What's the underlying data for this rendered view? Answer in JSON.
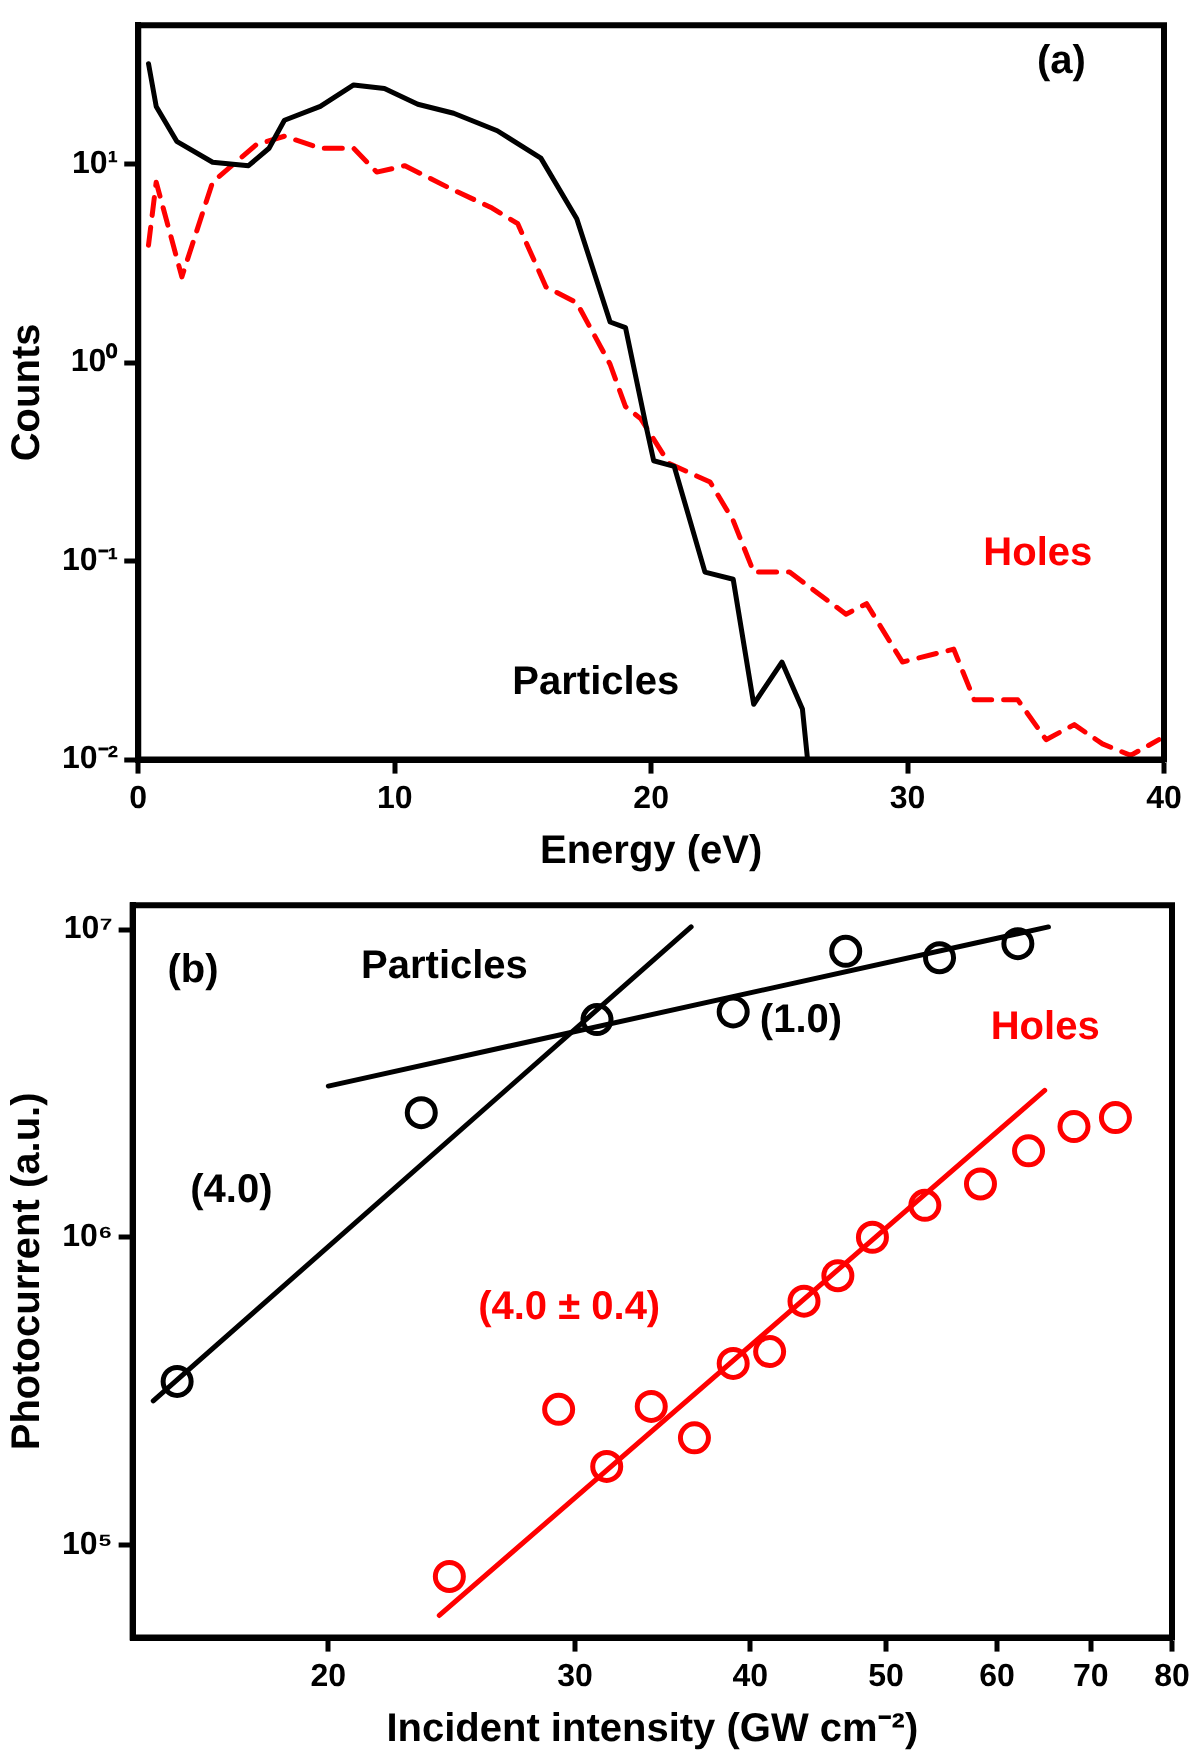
{
  "chart_data": [
    {
      "type": "line",
      "xlabel": "Energy (eV)",
      "ylabel": "Counts",
      "annotations": [
        "(a)"
      ],
      "log": "y",
      "xlim": [
        0,
        40
      ],
      "xticks": [
        0,
        10,
        20,
        30,
        40
      ],
      "ylim": [
        0.01,
        50
      ],
      "yticks": [
        {
          "value": 0.01,
          "label": "10⁻²"
        },
        {
          "value": 0.1,
          "label": "10⁻¹"
        },
        {
          "value": 1,
          "label": "10⁰"
        },
        {
          "value": 10,
          "label": "10¹"
        }
      ],
      "grid": false,
      "legend": false,
      "marker": "none",
      "series": [
        {
          "name": "Particles",
          "color": "#000000",
          "line_style": "solid",
          "x": [
            0.4,
            0.7,
            1.5,
            2.9,
            4.3,
            5.1,
            5.7,
            7.1,
            8.4,
            9.6,
            10.9,
            12.3,
            14.0,
            15.7,
            17.1,
            18.4,
            19.0,
            19.8,
            20.1,
            20.9,
            22.1,
            23.2,
            24.0,
            25.1,
            25.9,
            26.1
          ],
          "values": [
            32,
            19.5,
            13,
            10.2,
            9.8,
            12,
            16.6,
            19.5,
            25,
            24,
            20,
            18,
            14.7,
            10.7,
            5.3,
            1.6,
            1.5,
            0.48,
            0.32,
            0.3,
            0.088,
            0.081,
            0.019,
            0.031,
            0.018,
            0.01
          ]
        },
        {
          "name": "Holes",
          "color": "#ff0000",
          "line_style": "dashed",
          "x": [
            0.4,
            0.7,
            1.7,
            2.1,
            2.9,
            4.6,
            5.7,
            7.1,
            8.4,
            9.3,
            10.4,
            12.1,
            13.8,
            14.8,
            15.9,
            17.1,
            18.4,
            19.0,
            19.6,
            20.7,
            22.3,
            23.2,
            24.0,
            25.4,
            27.6,
            28.4,
            29.8,
            31.8,
            32.6,
            34.3,
            35.4,
            36.5,
            37.6,
            38.7,
            39.8
          ],
          "values": [
            3.9,
            8.1,
            2.7,
            3.9,
            8.1,
            12.5,
            13.8,
            12,
            12,
            9.1,
            9.8,
            7.6,
            6,
            5,
            2.4,
            2.0,
            0.98,
            0.6,
            0.52,
            0.31,
            0.25,
            0.16,
            0.088,
            0.088,
            0.054,
            0.061,
            0.031,
            0.036,
            0.02,
            0.02,
            0.0126,
            0.015,
            0.012,
            0.0105,
            0.0126
          ]
        }
      ]
    },
    {
      "type": "scatter",
      "xlabel": "Incident intensity (GW cm⁻²)",
      "ylabel": "Photocurrent (a.u.)",
      "annotations": [
        "(b)"
      ],
      "log": "xy",
      "xlim": [
        14.5,
        80
      ],
      "xticks": [
        20,
        30,
        40,
        50,
        60,
        70,
        80
      ],
      "ylim": [
        50000,
        12000000
      ],
      "yticks": [
        {
          "value": 100000,
          "label": "10⁵"
        },
        {
          "value": 1000000,
          "label": "10⁶"
        },
        {
          "value": 10000000,
          "label": "10⁷"
        }
      ],
      "grid": false,
      "legend": false,
      "series": [
        {
          "name": "Particles",
          "color": "#000000",
          "marker": "circle",
          "x": [
            15.6,
            23.3,
            31.1,
            38.9,
            46.8,
            54.6,
            62.1
          ],
          "values": [
            340000,
            2540000,
            5100000,
            5400000,
            8500000,
            8100000,
            9000000
          ]
        },
        {
          "name": "Holes",
          "color": "#ff0000",
          "marker": "circle",
          "x": [
            24.4,
            29.2,
            31.6,
            34.0,
            36.5,
            38.9,
            41.3,
            43.7,
            46.2,
            48.9,
            53.3,
            58.4,
            63.2,
            68.1,
            72.9
          ],
          "values": [
            79000,
            276000,
            180000,
            282000,
            223000,
            389000,
            425000,
            620000,
            750000,
            1000000,
            1270000,
            1490000,
            1910000,
            2290000,
            2450000
          ]
        },
        {
          "name": "(4.0)",
          "type": "line",
          "marker": "none",
          "color": "#000000",
          "x": [
            15.0,
            36.3
          ],
          "values": [
            294000,
            10200000
          ]
        },
        {
          "name": "(1.0)",
          "type": "line",
          "marker": "none",
          "color": "#000000",
          "x": [
            20,
            65.3
          ],
          "values": [
            3100000,
            10200000
          ]
        },
        {
          "name": "(4.0 ± 0.4)",
          "type": "line",
          "marker": "none",
          "color": "#ff0000",
          "x": [
            24.0,
            64.9
          ],
          "values": [
            59000,
            3000000
          ]
        }
      ]
    }
  ]
}
